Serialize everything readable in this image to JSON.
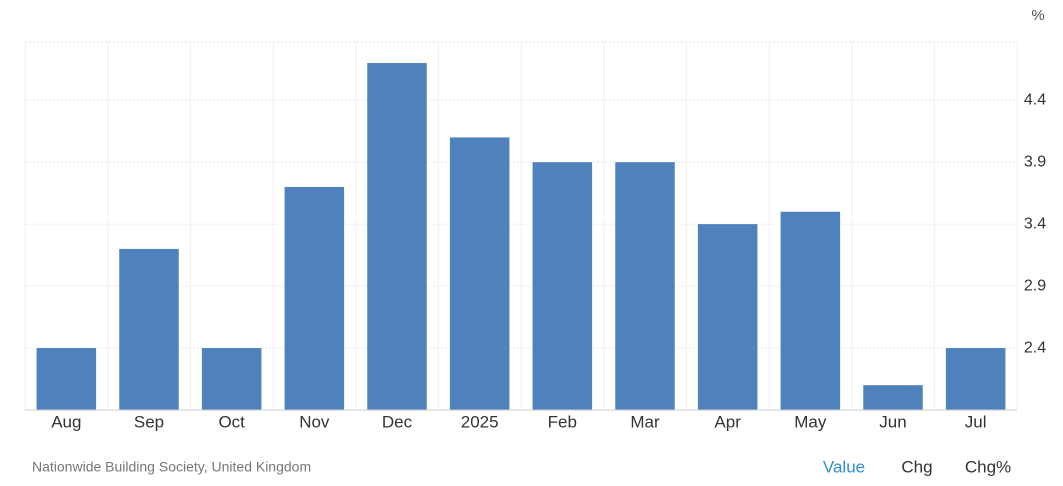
{
  "chart_data": {
    "type": "bar",
    "y_unit": "%",
    "categories": [
      "Aug",
      "Sep",
      "Oct",
      "Nov",
      "Dec",
      "2025",
      "Feb",
      "Mar",
      "Apr",
      "May",
      "Jun",
      "Jul"
    ],
    "values": [
      2.4,
      3.2,
      2.4,
      3.7,
      4.7,
      4.1,
      3.9,
      3.9,
      3.4,
      3.5,
      2.1,
      2.4
    ],
    "color": "#4f81bd",
    "ylim": [
      1.9,
      4.87
    ],
    "yticks": [
      2.4,
      2.9,
      3.4,
      3.9,
      4.4
    ],
    "grid": true,
    "source": "Nationwide Building Society, United Kingdom",
    "tabs": [
      "Value",
      "Chg",
      "Chg%"
    ]
  }
}
